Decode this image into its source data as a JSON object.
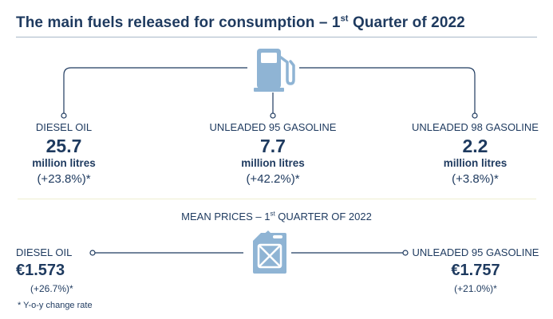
{
  "title": {
    "main": "The main fuels released for consumption – 1",
    "sup": "st",
    "rest": " Quarter of 2022"
  },
  "fuels": [
    {
      "label": "DIESEL OIL",
      "value": "25.7",
      "unit": "million litres",
      "change": "(+23.8%)*"
    },
    {
      "label": "UNLEADED 95 GASOLINE",
      "value": "7.7",
      "unit": "million litres",
      "change": "(+42.2%)*"
    },
    {
      "label": "UNLEADED 98 GASOLINE",
      "value": "2.2",
      "unit": "million litres",
      "change": "(+3.8%)*"
    }
  ],
  "prices": {
    "title": {
      "main": "MEAN PRICES – 1",
      "sup": "st",
      "rest": " QUARTER OF 2022"
    },
    "items": [
      {
        "label": "DIESEL OIL",
        "value": "€1.573",
        "change": "(+26.7%)*"
      },
      {
        "label": "UNLEADED 95 GASOLINE",
        "value": "€1.757",
        "change": "(+21.0%)*"
      }
    ]
  },
  "footnote": "* Y-o-y change rate",
  "colors": {
    "text": "#1e3a5f",
    "icon": "#8fb4d4",
    "line": "#1e3a5f",
    "divider": "#eeeed0"
  },
  "icons": [
    "fuel-pump-icon",
    "jerrycan-icon"
  ]
}
